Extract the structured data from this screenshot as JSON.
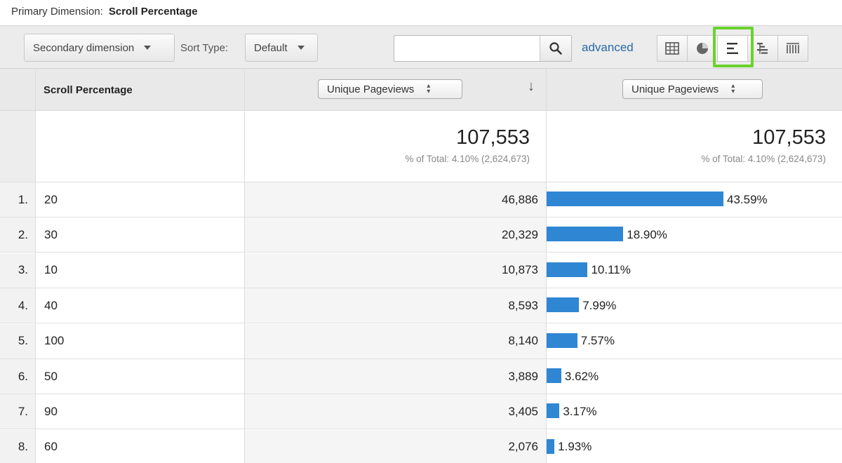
{
  "primary": {
    "label": "Primary Dimension:",
    "value": "Scroll Percentage"
  },
  "toolbar": {
    "secondary_label": "Secondary dimension",
    "sort_type_label": "Sort Type:",
    "sort_value": "Default",
    "search_value": "",
    "advanced_label": "advanced",
    "views": [
      "table-view-icon",
      "pie-view-icon",
      "comparison-view-icon",
      "term-cloud-icon",
      "pivot-view-icon"
    ],
    "active_view": "comparison-view-icon"
  },
  "table": {
    "dim_header": "Scroll Percentage",
    "metric1_select": "Unique Pageviews",
    "metric2_select": "Unique Pageviews",
    "totals": {
      "value1": "107,553",
      "sub1": "% of Total: 4.10% (2,624,673)",
      "value2": "107,553",
      "sub2": "% of Total: 4.10% (2,624,673)"
    },
    "rows": [
      {
        "idx": "1.",
        "dim": "20",
        "value": "46,886",
        "pct_label": "43.59%",
        "pct": 43.59
      },
      {
        "idx": "2.",
        "dim": "30",
        "value": "20,329",
        "pct_label": "18.90%",
        "pct": 18.9
      },
      {
        "idx": "3.",
        "dim": "10",
        "value": "10,873",
        "pct_label": "10.11%",
        "pct": 10.11
      },
      {
        "idx": "4.",
        "dim": "40",
        "value": "8,593",
        "pct_label": "7.99%",
        "pct": 7.99
      },
      {
        "idx": "5.",
        "dim": "100",
        "value": "8,140",
        "pct_label": "7.57%",
        "pct": 7.57
      },
      {
        "idx": "6.",
        "dim": "50",
        "value": "3,889",
        "pct_label": "3.62%",
        "pct": 3.62
      },
      {
        "idx": "7.",
        "dim": "90",
        "value": "3,405",
        "pct_label": "3.17%",
        "pct": 3.17
      },
      {
        "idx": "8.",
        "dim": "60",
        "value": "2,076",
        "pct_label": "1.93%",
        "pct": 1.93
      }
    ]
  },
  "colors": {
    "bar": "#2f86d3",
    "highlight": "#6ad22e",
    "link": "#2a6aa8"
  }
}
